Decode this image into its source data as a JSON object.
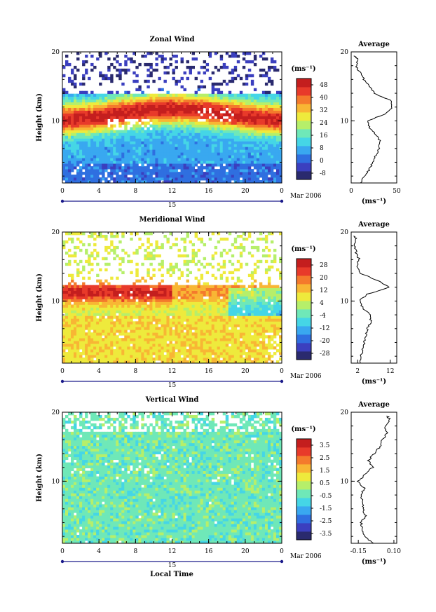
{
  "figure": {
    "xlabel": "Local Time",
    "date_label": "Mar 2006",
    "day_label": "15",
    "x_ticks": [
      "0",
      "4",
      "8",
      "12",
      "16",
      "20",
      "0"
    ],
    "ylabel": "Height (km)",
    "y_ticks": [
      "20",
      "10"
    ],
    "unit_label": "(ms⁻¹)"
  },
  "chart_data": [
    {
      "type": "heatmap",
      "title": "Zonal Wind",
      "xlim": [
        0,
        24
      ],
      "ylim": [
        1,
        20
      ],
      "colorbar_ticks": [
        "48",
        "40",
        "32",
        "24",
        "16",
        "8",
        "0",
        "-8"
      ],
      "colorbar_range": [
        -8,
        48
      ],
      "colors": [
        "#2a2a6e",
        "#3b3fbf",
        "#2f6fe0",
        "#39a8f0",
        "#45d6e6",
        "#6fe8b8",
        "#b6ef6a",
        "#eeea3c",
        "#f8b634",
        "#f47a2c",
        "#e83a2a",
        "#c41e1e"
      ],
      "profile": {
        "type": "line",
        "title": "Average",
        "x_ticks": [
          "0",
          "50"
        ],
        "xlim": [
          0,
          50
        ],
        "y_ticks": [
          "20",
          "10"
        ],
        "height_km": [
          1,
          2,
          3,
          4,
          5,
          6,
          7,
          8,
          9,
          10,
          11,
          12,
          13,
          14,
          15,
          16,
          17,
          18,
          19,
          19.5
        ],
        "value": [
          10,
          15,
          20,
          24,
          27,
          30,
          32,
          28,
          20,
          18,
          38,
          45,
          43,
          25,
          20,
          14,
          10,
          5,
          8,
          2
        ]
      }
    },
    {
      "type": "heatmap",
      "title": "Meridional Wind",
      "xlim": [
        0,
        24
      ],
      "ylim": [
        1,
        20
      ],
      "colorbar_ticks": [
        "28",
        "20",
        "12",
        "4",
        "-4",
        "-12",
        "-20",
        "-28"
      ],
      "colorbar_range": [
        -28,
        28
      ],
      "colors": [
        "#2a2a6e",
        "#3b3fbf",
        "#2f6fe0",
        "#39a8f0",
        "#45d6e6",
        "#6fe8b8",
        "#b6ef6a",
        "#eeea3c",
        "#f8b634",
        "#f47a2c",
        "#e83a2a",
        "#c41e1e"
      ],
      "profile": {
        "type": "line",
        "title": "Average",
        "x_ticks": [
          "2",
          "12"
        ],
        "xlim": [
          0,
          14
        ],
        "y_ticks": [
          "20",
          "10"
        ],
        "height_km": [
          1,
          2,
          3,
          4,
          5,
          6,
          7,
          8,
          9,
          10,
          11,
          12,
          13,
          14,
          15,
          16,
          17,
          18,
          19,
          19.5
        ],
        "value": [
          3,
          3,
          3.5,
          4,
          4.5,
          5,
          6,
          6,
          3.5,
          2.5,
          5,
          11.5,
          8,
          3,
          1.5,
          2.5,
          1.5,
          1,
          1.5,
          0.5
        ]
      }
    },
    {
      "type": "heatmap",
      "title": "Vertical Wind",
      "xlim": [
        0,
        24
      ],
      "ylim": [
        1,
        20
      ],
      "colorbar_ticks": [
        "3.5",
        "2.5",
        "1.5",
        "0.5",
        "-0.5",
        "-1.5",
        "-2.5",
        "-3.5"
      ],
      "colorbar_range": [
        -4,
        4
      ],
      "colors": [
        "#2a2a6e",
        "#3b3fbf",
        "#2f6fe0",
        "#39a8f0",
        "#45d6e6",
        "#6fe8b8",
        "#b6ef6a",
        "#eeea3c",
        "#f8b634",
        "#f47a2c",
        "#e83a2a",
        "#c41e1e"
      ],
      "profile": {
        "type": "line",
        "title": "Average",
        "x_ticks": [
          "-0.15",
          "0.10"
        ],
        "xlim": [
          -0.2,
          0.12
        ],
        "y_ticks": [
          "20",
          "10"
        ],
        "height_km": [
          1,
          2,
          3,
          4,
          5,
          6,
          7,
          8,
          9,
          10,
          11,
          12,
          13,
          14,
          15,
          16,
          17,
          18,
          19,
          19.5
        ],
        "value": [
          -0.05,
          -0.1,
          -0.12,
          -0.13,
          -0.1,
          -0.12,
          -0.12,
          -0.13,
          -0.11,
          -0.15,
          -0.1,
          -0.05,
          -0.08,
          -0.04,
          0.0,
          0.02,
          0.05,
          0.04,
          0.07,
          0.05
        ]
      }
    }
  ]
}
